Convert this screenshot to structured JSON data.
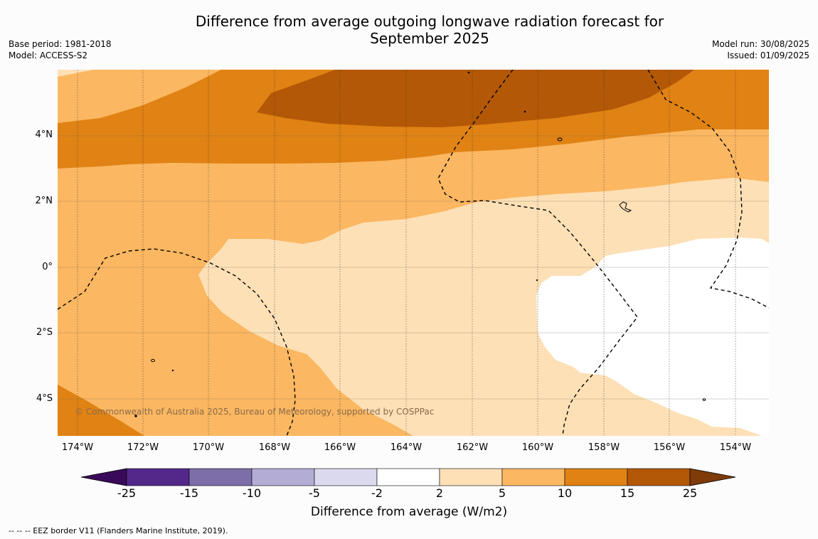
{
  "title_line1": "Difference from average outgoing longwave radiation forecast for",
  "title_line2": "September 2025",
  "meta_left": {
    "base_period": "Base period: 1981-2018",
    "model": "Model: ACCESS-S2"
  },
  "meta_right": {
    "model_run": "Model run: 30/08/2025",
    "issued": "Issued: 01/09/2025"
  },
  "copyright": "© Commonwealth of Australia 2025, Bureau of Meteorology, supported by COSPPac",
  "lat_labels": [
    "4°N",
    "2°N",
    "0°",
    "2°S",
    "4°S"
  ],
  "lon_labels": [
    "174°W",
    "172°W",
    "170°W",
    "168°W",
    "166°W",
    "164°W",
    "162°W",
    "160°W",
    "158°W",
    "156°W",
    "154°W"
  ],
  "colorbar": {
    "ticks": [
      "-25",
      "-15",
      "-10",
      "-5",
      "-2",
      "2",
      "5",
      "10",
      "15",
      "25"
    ],
    "colors": [
      "#3a0a5a",
      "#53288a",
      "#7d6ea9",
      "#b3acd4",
      "#dad9ee",
      "#ffffff",
      "#fde0b6",
      "#fbb761",
      "#e08214",
      "#b35806",
      "#7f3b08"
    ],
    "label": "Difference from average (W/m2)"
  },
  "footnote": "--  --  -- EEZ border V11 (Flanders Marine Institute, 2019).",
  "palette": {
    "band_2_5": "#fde0b6",
    "band_5_10": "#fbb761",
    "band_10_15": "#e08214",
    "band_15_25": "#b35806"
  }
}
